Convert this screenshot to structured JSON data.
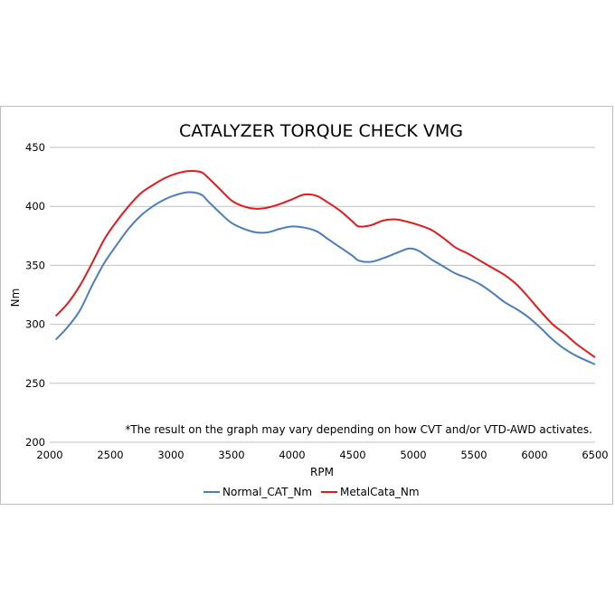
{
  "chart_data": {
    "type": "line",
    "title": "CATALYZER TORQUE CHECK VMG",
    "xlabel": "RPM",
    "ylabel": "Nm",
    "xlim": [
      2000,
      6500
    ],
    "ylim": [
      200,
      450
    ],
    "x_ticks": [
      2000,
      2500,
      3000,
      3500,
      4000,
      4500,
      5000,
      5500,
      6000,
      6500
    ],
    "y_ticks": [
      200,
      250,
      300,
      350,
      400,
      450
    ],
    "grid": "horizontal",
    "legend_position": "bottom",
    "annotation": "*The result on the graph may vary depending on how CVT and/or VTD-AWD activates.",
    "series": [
      {
        "name": "Normal_CAT_Nm",
        "color": "#4a7ebb",
        "points": [
          [
            2050,
            287
          ],
          [
            2150,
            298
          ],
          [
            2250,
            312
          ],
          [
            2350,
            333
          ],
          [
            2450,
            352
          ],
          [
            2550,
            367
          ],
          [
            2650,
            381
          ],
          [
            2750,
            392
          ],
          [
            2850,
            400
          ],
          [
            2950,
            406
          ],
          [
            3050,
            410
          ],
          [
            3150,
            412
          ],
          [
            3250,
            410
          ],
          [
            3300,
            405
          ],
          [
            3400,
            395
          ],
          [
            3500,
            386
          ],
          [
            3600,
            381
          ],
          [
            3700,
            378
          ],
          [
            3800,
            378
          ],
          [
            3900,
            381
          ],
          [
            4000,
            383
          ],
          [
            4100,
            382
          ],
          [
            4200,
            379
          ],
          [
            4300,
            372
          ],
          [
            4400,
            365
          ],
          [
            4500,
            358
          ],
          [
            4550,
            354
          ],
          [
            4650,
            353
          ],
          [
            4750,
            356
          ],
          [
            4850,
            360
          ],
          [
            4950,
            364
          ],
          [
            5000,
            364
          ],
          [
            5050,
            362
          ],
          [
            5150,
            355
          ],
          [
            5250,
            349
          ],
          [
            5350,
            343
          ],
          [
            5450,
            339
          ],
          [
            5550,
            334
          ],
          [
            5650,
            327
          ],
          [
            5750,
            319
          ],
          [
            5850,
            313
          ],
          [
            5950,
            306
          ],
          [
            6050,
            297
          ],
          [
            6150,
            287
          ],
          [
            6250,
            279
          ],
          [
            6350,
            273
          ],
          [
            6500,
            266
          ]
        ]
      },
      {
        "name": "MetalCata_Nm",
        "color": "#e31a1c",
        "points": [
          [
            2050,
            307
          ],
          [
            2150,
            318
          ],
          [
            2250,
            333
          ],
          [
            2350,
            352
          ],
          [
            2450,
            372
          ],
          [
            2550,
            387
          ],
          [
            2650,
            400
          ],
          [
            2750,
            411
          ],
          [
            2850,
            418
          ],
          [
            2950,
            424
          ],
          [
            3050,
            428
          ],
          [
            3150,
            430
          ],
          [
            3250,
            429
          ],
          [
            3300,
            425
          ],
          [
            3400,
            415
          ],
          [
            3500,
            405
          ],
          [
            3600,
            400
          ],
          [
            3700,
            398
          ],
          [
            3800,
            399
          ],
          [
            3900,
            402
          ],
          [
            4000,
            406
          ],
          [
            4100,
            410
          ],
          [
            4200,
            409
          ],
          [
            4300,
            403
          ],
          [
            4400,
            396
          ],
          [
            4500,
            387
          ],
          [
            4550,
            383
          ],
          [
            4650,
            384
          ],
          [
            4750,
            388
          ],
          [
            4850,
            389
          ],
          [
            4950,
            387
          ],
          [
            5050,
            384
          ],
          [
            5150,
            380
          ],
          [
            5250,
            373
          ],
          [
            5350,
            365
          ],
          [
            5450,
            360
          ],
          [
            5550,
            354
          ],
          [
            5650,
            348
          ],
          [
            5750,
            342
          ],
          [
            5850,
            334
          ],
          [
            5950,
            323
          ],
          [
            6050,
            311
          ],
          [
            6150,
            300
          ],
          [
            6250,
            292
          ],
          [
            6350,
            283
          ],
          [
            6500,
            272
          ]
        ]
      }
    ]
  }
}
